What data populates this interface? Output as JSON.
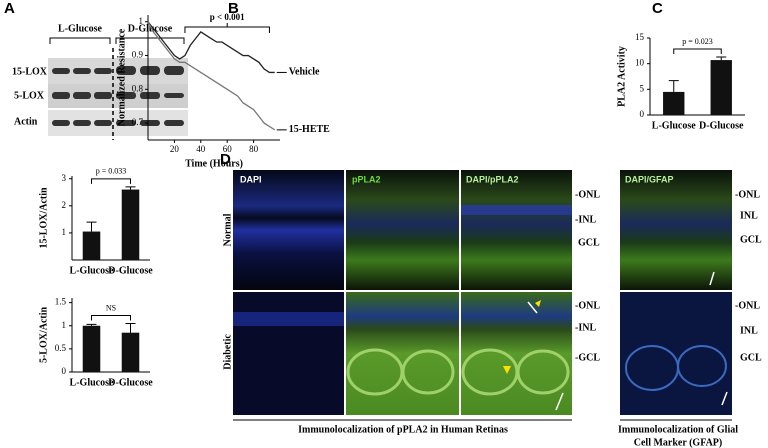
{
  "panel_labels": [
    "A",
    "B",
    "C",
    "D"
  ],
  "blot": {
    "groups": [
      "L-Glucose",
      "D-Glucose"
    ],
    "rows": [
      "15-LOX",
      "5-LOX",
      "Actin"
    ]
  },
  "chart_data": [
    {
      "type": "bar",
      "ylabel": "15-LOX/Actin",
      "categories": [
        "L-Glucose",
        "D-Glucose"
      ],
      "values": [
        1.05,
        2.6
      ],
      "errors": [
        0.35,
        0.1
      ],
      "ylim": [
        0,
        3.1
      ],
      "yticks": [
        1,
        2,
        3
      ],
      "annotation": "p = 0.033",
      "color": "#111111"
    },
    {
      "type": "bar",
      "ylabel": "5-LOX/Actin",
      "categories": [
        "L-Glucose",
        "D-Glucose"
      ],
      "values": [
        1.0,
        0.85
      ],
      "errors": [
        0.03,
        0.2
      ],
      "ylim": [
        0,
        1.6
      ],
      "yticks": [
        0,
        0.5,
        1,
        1.5
      ],
      "annotation": "NS",
      "color": "#111111"
    },
    {
      "type": "line",
      "xlabel": "Time (Hours)",
      "ylabel": "Normalized Resistance",
      "annotation": "p < 0.001",
      "x": [
        0,
        4,
        8,
        12,
        16,
        20,
        24,
        28,
        32,
        36,
        40,
        44,
        48,
        52,
        56,
        60,
        64,
        68,
        72,
        76,
        80,
        84,
        88,
        92,
        96
      ],
      "series": [
        {
          "name": "Vehicle",
          "color": "#222222",
          "values": [
            1.0,
            0.98,
            0.96,
            0.94,
            0.92,
            0.9,
            0.89,
            0.9,
            0.93,
            0.95,
            0.97,
            0.96,
            0.95,
            0.94,
            0.94,
            0.93,
            0.92,
            0.91,
            0.9,
            0.9,
            0.89,
            0.88,
            0.86,
            0.85,
            0.85
          ]
        },
        {
          "name": "15-HETE",
          "color": "#777777",
          "values": [
            1.0,
            0.97,
            0.95,
            0.93,
            0.91,
            0.89,
            0.88,
            0.88,
            0.87,
            0.86,
            0.85,
            0.84,
            0.83,
            0.82,
            0.81,
            0.8,
            0.79,
            0.78,
            0.76,
            0.75,
            0.74,
            0.72,
            0.7,
            0.69,
            0.68
          ]
        }
      ],
      "xlim": [
        0,
        100
      ],
      "ylim": [
        0.65,
        1.02
      ],
      "xticks": [
        20,
        40,
        60,
        80
      ],
      "yticks": [
        0.7,
        0.8,
        0.9,
        1
      ]
    },
    {
      "type": "bar",
      "ylabel": "PLA2 Activity",
      "categories": [
        "L-Glucose",
        "D-Glucose"
      ],
      "values": [
        4.5,
        10.7
      ],
      "errors": [
        2.2,
        0.6
      ],
      "ylim": [
        0,
        15
      ],
      "yticks": [
        0,
        5,
        10,
        15
      ],
      "annotation": "p = 0.023",
      "color": "#111111"
    }
  ],
  "micro": {
    "columns": [
      "DAPI",
      "pPLA2",
      "DAPI/pPLA2",
      "DAPI/GFAP"
    ],
    "rows": [
      "Normal",
      "Diabetic"
    ],
    "layers": {
      "pla2_normal": [
        "-ONL",
        "-INL",
        "GCL"
      ],
      "pla2_diabetic": [
        "-ONL",
        "-INL",
        "-GCL"
      ],
      "gfap_normal": [
        "-ONL",
        "INL",
        "GCL"
      ],
      "gfap_diabetic": [
        "-ONL",
        "INL",
        "GCL"
      ]
    },
    "captions": [
      "Immunolocalization of pPLA2 in Human Retinas",
      "Immunolocalization of Glial",
      "Cell Marker (GFAP)"
    ]
  }
}
